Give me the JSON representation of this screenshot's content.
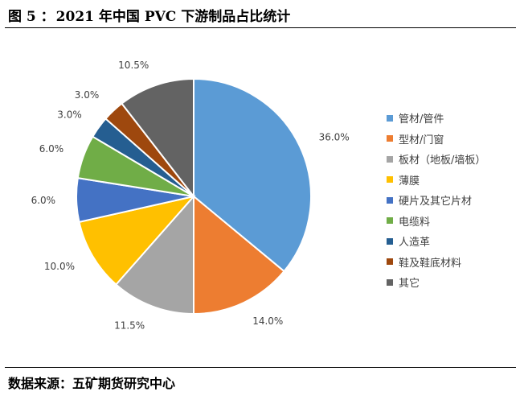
{
  "header": {
    "figure_label": "图 5 ：",
    "title": "2021 年中国 PVC 下游制品占比统计"
  },
  "footer": {
    "source": "数据来源：五矿期货研究中心"
  },
  "chart_data": {
    "type": "pie",
    "title": "2021 年中国 PVC 下游制品占比统计",
    "legend_position": "right",
    "start_angle": "12 o'clock, clockwise",
    "slices": [
      {
        "label": "管材/管件",
        "value": 36.0,
        "display": "36.0%",
        "color": "#5b9bd5"
      },
      {
        "label": "型材/门窗",
        "value": 14.0,
        "display": "14.0%",
        "color": "#ed7d31"
      },
      {
        "label": "板材（地板/墙板）",
        "value": 11.5,
        "display": "11.5%",
        "color": "#a5a5a5"
      },
      {
        "label": "薄膜",
        "value": 10.0,
        "display": "10.0%",
        "color": "#ffc000"
      },
      {
        "label": "硬片及其它片材",
        "value": 6.0,
        "display": "6.0%",
        "color": "#4472c4"
      },
      {
        "label": "电缆料",
        "value": 6.0,
        "display": "6.0%",
        "color": "#70ad47"
      },
      {
        "label": "人造革",
        "value": 3.0,
        "display": "3.0%",
        "color": "#255e91"
      },
      {
        "label": "鞋及鞋底材料",
        "value": 3.0,
        "display": "3.0%",
        "color": "#9e480e"
      },
      {
        "label": "其它",
        "value": 10.5,
        "display": "10.5%",
        "color": "#636363"
      }
    ]
  }
}
